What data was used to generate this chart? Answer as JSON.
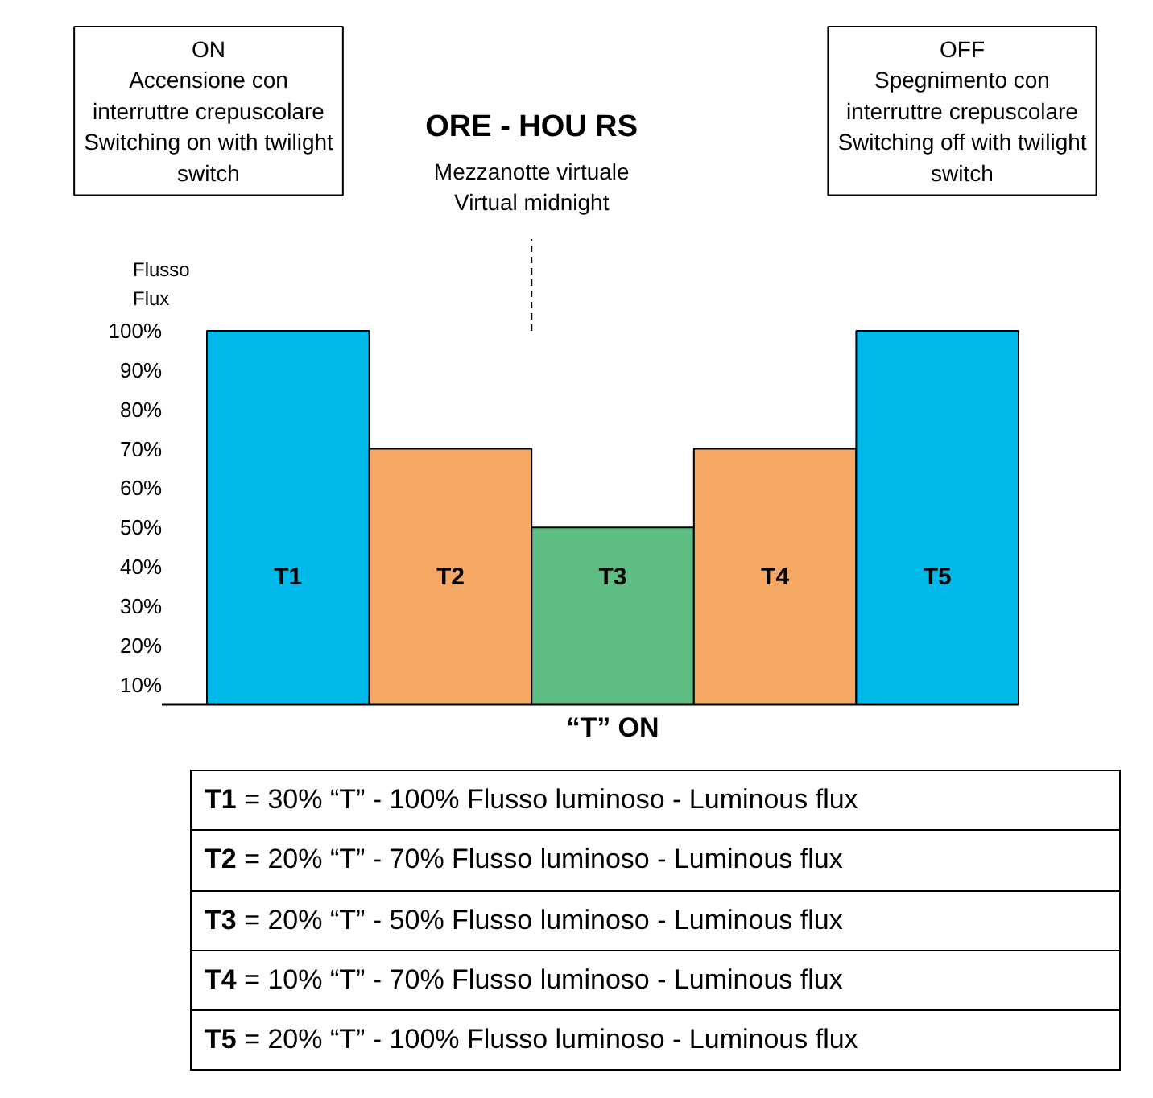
{
  "chart_data": {
    "type": "bar",
    "title": "ORE - HOU RS",
    "xlabel": "“T” ON",
    "ylabel": "Flusso\nFlux",
    "categories": [
      "T1",
      "T2",
      "T3",
      "T4",
      "T5"
    ],
    "values": [
      100,
      70,
      50,
      70,
      100
    ],
    "colors": [
      "#00b9e8",
      "#f5a864",
      "#5dbd83",
      "#f5a864",
      "#00b9e8"
    ],
    "ylim": [
      5,
      100
    ],
    "yticks": [
      {
        "value": 10,
        "label": "10%"
      },
      {
        "value": 20,
        "label": "20%"
      },
      {
        "value": 30,
        "label": "30%"
      },
      {
        "value": 40,
        "label": "40%"
      },
      {
        "value": 50,
        "label": "50%"
      },
      {
        "value": 60,
        "label": "60%"
      },
      {
        "value": 70,
        "label": "70%"
      },
      {
        "value": 80,
        "label": "80%"
      },
      {
        "value": 90,
        "label": "90%"
      },
      {
        "value": 100,
        "label": "100%"
      }
    ],
    "grid": false,
    "annotations": [
      {
        "text": "ON\nAccensione con\ninterruttre crepuscolare\nSwitching on with twilight\nswitch"
      },
      {
        "text": "OFF\nSpegnimento con\ninterruttre crepuscolare\nSwitching off with twilight\nswitch"
      },
      "Mezzanotte virtuale\nVirtual midnight",
      {
        "text": "T1 = 30% “T” - 100% Flusso luminoso  - Luminous flux"
      },
      {
        "text": "T2 = 20% “T” - 70% Flusso luminoso  - Luminous flux"
      },
      {
        "text": "T3 = 20% “T” - 50% Flusso luminoso  - Luminous flux"
      },
      {
        "text": "T4 = 10% “T” - 70% Flusso luminoso  - Luminous flux"
      },
      {
        "text": "T5 = 20% “T” - 100% Flusso luminoso  - Luminous flux"
      }
    ]
  }
}
